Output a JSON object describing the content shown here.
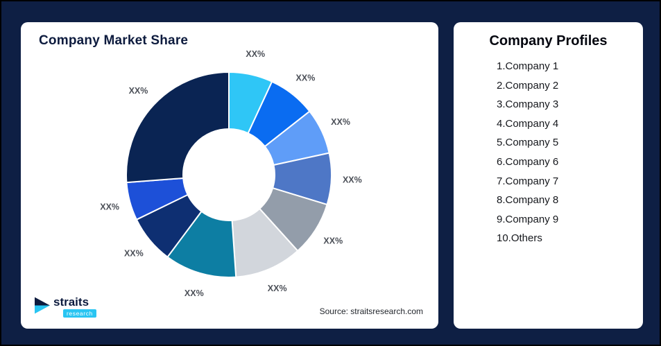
{
  "page": {
    "background_color": "#0e1f44"
  },
  "market_share_card": {
    "title": "Company Market Share",
    "source": "Source: straitsresearch.com",
    "logo": {
      "name": "straits",
      "sub": "research",
      "accent_color": "#29c5f2",
      "dark_color": "#0d1b3e"
    }
  },
  "profiles_card": {
    "title": "Company Profiles",
    "items": [
      "1.Company 1",
      "2.Company 2",
      "3.Company 3",
      "4.Company 4",
      "5.Company 5",
      "6.Company 6",
      "7.Company 7",
      "8.Company 8",
      "9.Company 9",
      "10.Others"
    ]
  },
  "chart_data": {
    "type": "pie",
    "subtype": "donut",
    "title": "Company Market Share",
    "legend_position": "none",
    "label_color": "#4c5058",
    "note": "All slice labels are placeholder text XX%; values are relative sizes estimated from the drawing, clockwise from 12 o'clock",
    "segments": [
      {
        "name": "Company 1",
        "label": "XX%",
        "value": 6.9,
        "color": "#2fc6f6"
      },
      {
        "name": "Company 2",
        "label": "XX%",
        "value": 7.5,
        "color": "#0a6cf1"
      },
      {
        "name": "Company 3",
        "label": "XX%",
        "value": 7.2,
        "color": "#5f9df8"
      },
      {
        "name": "Company 4",
        "label": "XX%",
        "value": 8.1,
        "color": "#4e77c6"
      },
      {
        "name": "Company 5",
        "label": "XX%",
        "value": 8.6,
        "color": "#939daa"
      },
      {
        "name": "Company 6",
        "label": "XX%",
        "value": 10.6,
        "color": "#d2d6dc"
      },
      {
        "name": "Company 7",
        "label": "XX%",
        "value": 11.3,
        "color": "#0d7ea3"
      },
      {
        "name": "Company 8",
        "label": "XX%",
        "value": 7.6,
        "color": "#0e2f72"
      },
      {
        "name": "Company 9",
        "label": "XX%",
        "value": 6.0,
        "color": "#1d50d8"
      },
      {
        "name": "Others",
        "label": "XX%",
        "value": 26.2,
        "color": "#0a2453"
      }
    ]
  }
}
